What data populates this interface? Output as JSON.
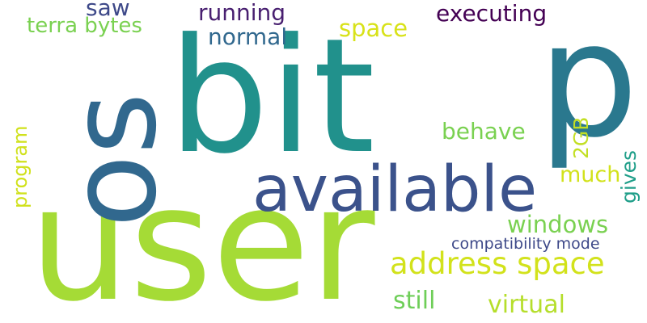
{
  "words": [
    {
      "id": "user",
      "text": "user",
      "color": "#a5db36"
    },
    {
      "id": "bit",
      "text": "bit",
      "color": "#21918c"
    },
    {
      "id": "p",
      "text": "p",
      "color": "#2a788e"
    },
    {
      "id": "os",
      "text": "os",
      "color": "#31688e"
    },
    {
      "id": "available",
      "text": "available",
      "color": "#3b528b"
    },
    {
      "id": "address-space",
      "text": "address space",
      "color": "#d2e21b"
    },
    {
      "id": "windows",
      "text": "windows",
      "color": "#7ad151"
    },
    {
      "id": "virtual",
      "text": "virtual",
      "color": "#b5de2b"
    },
    {
      "id": "still",
      "text": "still",
      "color": "#6ece58"
    },
    {
      "id": "compatibility-mode",
      "text": "compatibility mode",
      "color": "#3e4989"
    },
    {
      "id": "executing",
      "text": "executing",
      "color": "#440154"
    },
    {
      "id": "running",
      "text": "running",
      "color": "#481f70"
    },
    {
      "id": "normal",
      "text": "normal",
      "color": "#31688e"
    },
    {
      "id": "space",
      "text": "space",
      "color": "#d8e219"
    },
    {
      "id": "saw",
      "text": "saw",
      "color": "#3e4989"
    },
    {
      "id": "terra-bytes",
      "text": "terra bytes",
      "color": "#7ad151"
    },
    {
      "id": "behave",
      "text": "behave",
      "color": "#7ad151"
    },
    {
      "id": "much",
      "text": "much",
      "color": "#d2e21b"
    },
    {
      "id": "2gb",
      "text": "2GB",
      "color": "#c2df23"
    },
    {
      "id": "gives",
      "text": "gives",
      "color": "#1f9e89"
    },
    {
      "id": "program",
      "text": "program",
      "color": "#d0e11c"
    }
  ]
}
